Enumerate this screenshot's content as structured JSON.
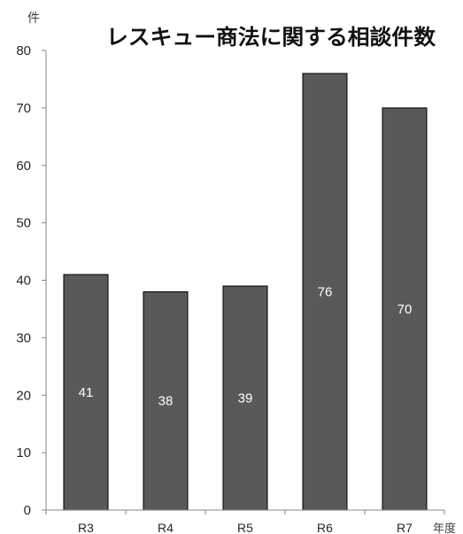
{
  "chart_data": {
    "type": "bar",
    "title": "レスキュー商法に関する相談件数",
    "ylabel": "件",
    "xlabel": "年度",
    "categories": [
      "R3",
      "R4",
      "R5",
      "R6",
      "R7"
    ],
    "values": [
      41,
      38,
      39,
      76,
      70
    ],
    "ylim": [
      0,
      80
    ],
    "yticks": [
      0,
      10,
      20,
      30,
      40,
      50,
      60,
      70,
      80
    ],
    "grid": false,
    "legend": false,
    "colors": {
      "bar": "#595959",
      "bar_outline": "#000000",
      "axis": "#868686",
      "data_label": "#ffffff"
    }
  }
}
